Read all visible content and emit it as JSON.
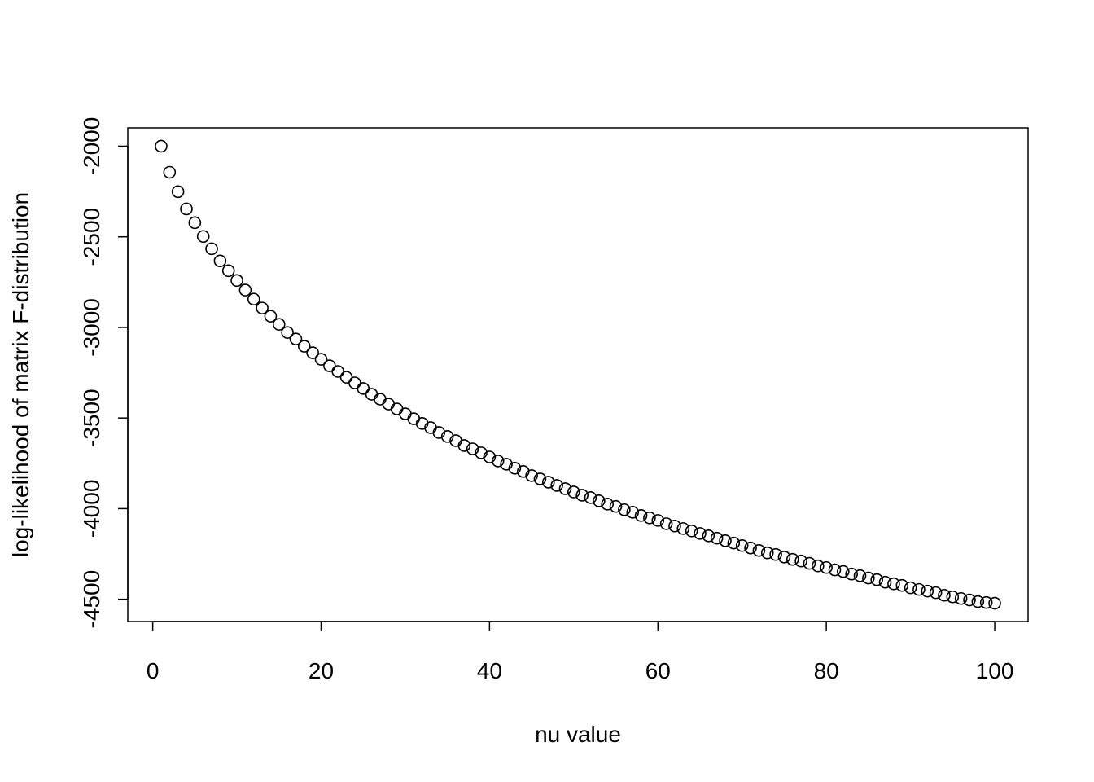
{
  "chart_data": {
    "type": "scatter",
    "x_label": "nu value",
    "y_label": "log-likelihood of matrix F-distribution",
    "x": [
      1,
      2,
      3,
      4,
      5,
      6,
      7,
      8,
      9,
      10,
      11,
      12,
      13,
      14,
      15,
      16,
      17,
      18,
      19,
      20,
      21,
      22,
      23,
      24,
      25,
      26,
      27,
      28,
      29,
      30,
      31,
      32,
      33,
      34,
      35,
      36,
      37,
      38,
      39,
      40,
      41,
      42,
      43,
      44,
      45,
      46,
      47,
      48,
      49,
      50,
      51,
      52,
      53,
      54,
      55,
      56,
      57,
      58,
      59,
      60,
      61,
      62,
      63,
      64,
      65,
      66,
      67,
      68,
      69,
      70,
      71,
      72,
      73,
      74,
      75,
      76,
      77,
      78,
      79,
      80,
      81,
      82,
      83,
      84,
      85,
      86,
      87,
      88,
      89,
      90,
      91,
      92,
      93,
      94,
      95,
      96,
      97,
      98,
      99,
      100
    ],
    "series": [
      {
        "color": "#000000",
        "values": [
          -2000,
          -2144,
          -2251,
          -2346,
          -2422,
          -2498,
          -2566,
          -2633,
          -2687,
          -2741,
          -2794,
          -2844,
          -2893,
          -2938,
          -2983,
          -3028,
          -3064,
          -3104,
          -3140,
          -3176,
          -3212,
          -3243,
          -3275,
          -3306,
          -3337,
          -3369,
          -3396,
          -3423,
          -3450,
          -3477,
          -3504,
          -3530,
          -3553,
          -3580,
          -3602,
          -3625,
          -3652,
          -3670,
          -3692,
          -3715,
          -3737,
          -3755,
          -3777,
          -3795,
          -3818,
          -3836,
          -3854,
          -3872,
          -3890,
          -3908,
          -3926,
          -3939,
          -3957,
          -3975,
          -3988,
          -4006,
          -4020,
          -4038,
          -4051,
          -4065,
          -4083,
          -4096,
          -4110,
          -4123,
          -4137,
          -4150,
          -4163,
          -4177,
          -4190,
          -4204,
          -4217,
          -4231,
          -4244,
          -4253,
          -4267,
          -4280,
          -4289,
          -4302,
          -4316,
          -4325,
          -4338,
          -4347,
          -4361,
          -4370,
          -4383,
          -4392,
          -4406,
          -4415,
          -4424,
          -4437,
          -4446,
          -4455,
          -4464,
          -4478,
          -4487,
          -4496,
          -4504,
          -4513,
          -4518,
          -4522
        ]
      }
    ],
    "xlim": [
      -2.96,
      103.96
    ],
    "ylim": [
      -4623,
      -1899
    ],
    "xticks": [
      0,
      20,
      40,
      60,
      80,
      100
    ],
    "yticks": [
      -4500,
      -4000,
      -3500,
      -3000,
      -2500,
      -2000
    ]
  }
}
